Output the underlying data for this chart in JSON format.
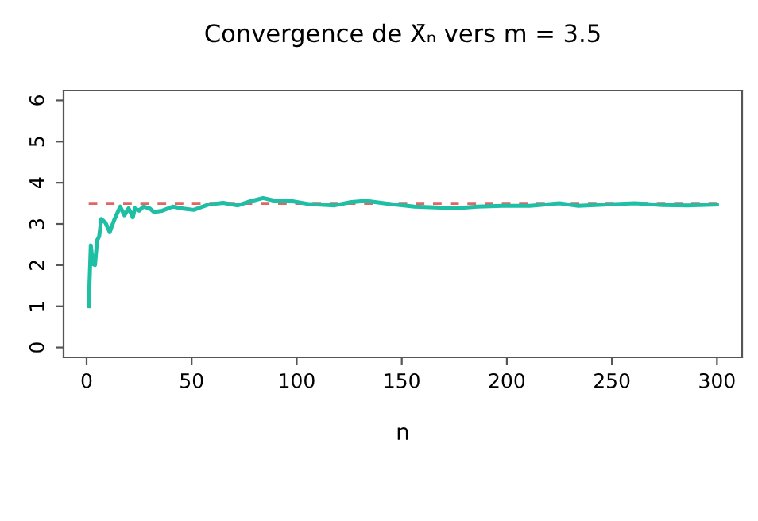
{
  "chart_data": {
    "type": "line",
    "title": "Convergence de X̄ₙ vers m = 3.5",
    "xlabel": "n",
    "xlim": [
      -10.96,
      311.96
    ],
    "ylim": [
      -0.24,
      6.24
    ],
    "xticks": [
      0,
      50,
      100,
      150,
      200,
      250,
      300
    ],
    "yticks": [
      0,
      1,
      2,
      3,
      4,
      5,
      6
    ],
    "grid": false,
    "legend": false,
    "marker": "none",
    "series": [
      {
        "color": "#e06666",
        "line_style": "dashed",
        "x": [
          1,
          300
        ],
        "values": [
          3.5,
          3.5
        ]
      },
      {
        "color": "#1fbfa5",
        "line_style": "solid",
        "x": [
          1,
          2,
          3,
          4,
          5,
          6,
          7,
          9,
          11,
          13,
          16,
          18,
          20,
          22,
          23,
          25,
          27,
          30,
          32,
          36,
          41,
          46,
          51,
          58,
          65,
          72,
          78,
          84,
          89,
          98,
          106,
          118,
          126,
          133,
          143,
          156,
          166,
          176,
          186,
          198,
          211,
          225,
          234,
          246,
          261,
          274,
          286,
          300
        ],
        "values": [
          1.0,
          2.48,
          2.03,
          2.0,
          2.6,
          2.7,
          3.12,
          3.03,
          2.8,
          3.08,
          3.42,
          3.21,
          3.38,
          3.16,
          3.38,
          3.32,
          3.42,
          3.38,
          3.29,
          3.32,
          3.42,
          3.37,
          3.34,
          3.47,
          3.51,
          3.45,
          3.55,
          3.63,
          3.57,
          3.55,
          3.48,
          3.45,
          3.53,
          3.56,
          3.49,
          3.42,
          3.4,
          3.38,
          3.42,
          3.44,
          3.44,
          3.5,
          3.44,
          3.47,
          3.5,
          3.46,
          3.45,
          3.47
        ]
      }
    ]
  }
}
